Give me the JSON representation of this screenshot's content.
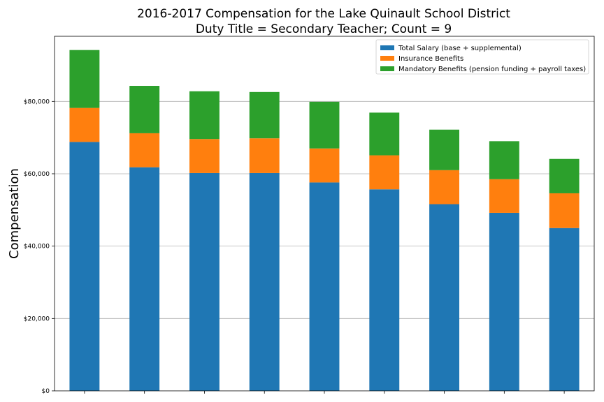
{
  "chart_data": {
    "type": "bar",
    "stacked": true,
    "title_line1": "2016-2017 Compensation for the Lake Quinault School District",
    "title_line2": "Duty Title = Secondary Teacher; Count = 9",
    "ylabel": "Compensation",
    "xlabel": "",
    "ylim": [
      0,
      98000
    ],
    "y_ticks": [
      0,
      20000,
      40000,
      60000,
      80000
    ],
    "y_tick_labels": [
      "$0",
      "$20,000",
      "$40,000",
      "$60,000",
      "$80,000"
    ],
    "grid": "horizontal",
    "legend_position": "top-right",
    "bar_count": 9,
    "series": [
      {
        "name": "Total Salary (base + supplemental)",
        "color": "#1f77b4",
        "values": [
          68800,
          61800,
          60200,
          60200,
          57600,
          55700,
          51600,
          49200,
          45000
        ]
      },
      {
        "name": "Insurance Benefits",
        "color": "#ff7f0e",
        "values": [
          9400,
          9400,
          9400,
          9600,
          9400,
          9400,
          9400,
          9300,
          9600
        ]
      },
      {
        "name": "Mandatory Benefits (pension funding + payroll taxes)",
        "color": "#2ca02c",
        "values": [
          16000,
          13100,
          13200,
          12800,
          12900,
          11800,
          11200,
          10500,
          9500
        ]
      }
    ]
  }
}
